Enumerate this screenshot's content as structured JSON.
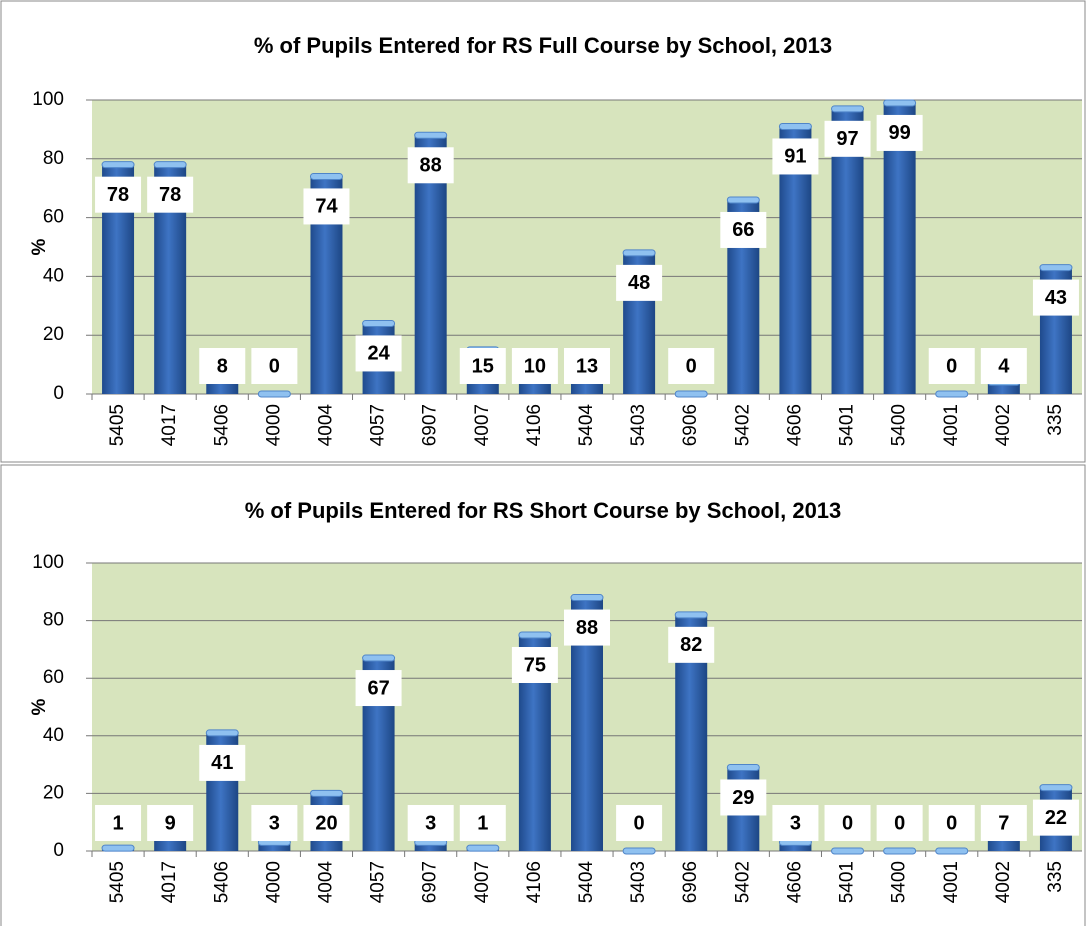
{
  "chart_data": [
    {
      "type": "bar",
      "title": "% of Pupils Entered for RS Full Course by School, 2013",
      "y_label": "%",
      "categories": [
        "5405",
        "4017",
        "5406",
        "4000",
        "4004",
        "4057",
        "6907",
        "4007",
        "4106",
        "5404",
        "5403",
        "6906",
        "5402",
        "4606",
        "5401",
        "5400",
        "4001",
        "4002",
        "335"
      ],
      "values": [
        78,
        78,
        8,
        0,
        74,
        24,
        88,
        15,
        10,
        13,
        48,
        0,
        66,
        91,
        97,
        99,
        0,
        4,
        43
      ],
      "color": "#2f5fa8",
      "ylim": [
        0,
        100
      ],
      "yticks": [
        0,
        20,
        40,
        60,
        80,
        100
      ],
      "grid": true
    },
    {
      "type": "bar",
      "title": "% of Pupils Entered for RS Short Course by School, 2013",
      "y_label": "%",
      "categories": [
        "5405",
        "4017",
        "5406",
        "4000",
        "4004",
        "4057",
        "6907",
        "4007",
        "4106",
        "5404",
        "5403",
        "6906",
        "5402",
        "4606",
        "5401",
        "5400",
        "4001",
        "4002",
        "335"
      ],
      "values": [
        1,
        9,
        41,
        3,
        20,
        67,
        3,
        1,
        75,
        88,
        0,
        82,
        29,
        3,
        0,
        0,
        0,
        7,
        22
      ],
      "color": "#2f5fa8",
      "ylim": [
        0,
        100
      ],
      "yticks": [
        0,
        20,
        40,
        60,
        80,
        100
      ],
      "grid": true
    }
  ]
}
